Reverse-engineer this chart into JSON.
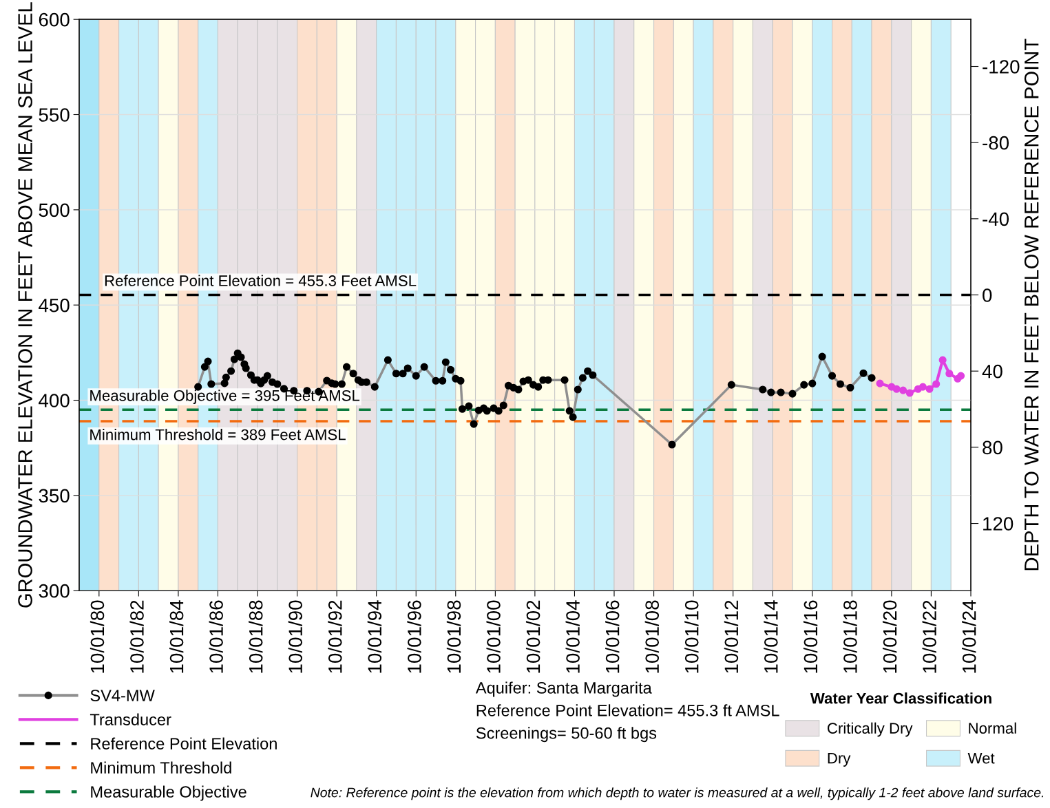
{
  "chart_data": {
    "type": "line",
    "ylabel": "GROUNDWATER ELEVATION IN FEET ABOVE MEAN SEA LEVEL",
    "y2label": "DEPTH TO WATER IN FEET BELOW REFERENCE POINT",
    "legend_title": "Water Year Classification",
    "xlim": [
      "1979-10-01",
      "2024-10-01"
    ],
    "xticks": [
      {
        "value": "1980-10-01",
        "label": "10/01/80"
      },
      {
        "value": "1982-10-01",
        "label": "10/01/82"
      },
      {
        "value": "1984-10-01",
        "label": "10/01/84"
      },
      {
        "value": "1986-10-01",
        "label": "10/01/86"
      },
      {
        "value": "1988-10-01",
        "label": "10/01/88"
      },
      {
        "value": "1990-10-01",
        "label": "10/01/90"
      },
      {
        "value": "1992-10-01",
        "label": "10/01/92"
      },
      {
        "value": "1994-10-01",
        "label": "10/01/94"
      },
      {
        "value": "1996-10-01",
        "label": "10/01/96"
      },
      {
        "value": "1998-10-01",
        "label": "10/01/98"
      },
      {
        "value": "2000-10-01",
        "label": "10/01/00"
      },
      {
        "value": "2002-10-01",
        "label": "10/01/02"
      },
      {
        "value": "2004-10-01",
        "label": "10/01/04"
      },
      {
        "value": "2006-10-01",
        "label": "10/01/06"
      },
      {
        "value": "2008-10-01",
        "label": "10/01/08"
      },
      {
        "value": "2010-10-01",
        "label": "10/01/10"
      },
      {
        "value": "2012-10-01",
        "label": "10/01/12"
      },
      {
        "value": "2014-10-01",
        "label": "10/01/14"
      },
      {
        "value": "2016-10-01",
        "label": "10/01/16"
      },
      {
        "value": "2018-10-01",
        "label": "10/01/18"
      },
      {
        "value": "2020-10-01",
        "label": "10/01/20"
      },
      {
        "value": "2022-10-01",
        "label": "10/01/22"
      },
      {
        "value": "2024-10-01",
        "label": "10/01/24"
      }
    ],
    "ylim": [
      300,
      600
    ],
    "yticks": [
      300,
      350,
      400,
      450,
      500,
      550,
      600
    ],
    "y2lim": [
      155.3,
      -144.7
    ],
    "y2ticks": [
      -120,
      -80,
      -40,
      0,
      40,
      80,
      120
    ],
    "grid": "y",
    "legend": "bottom",
    "series": [
      {
        "name": "SV4-MW",
        "color": "#000000",
        "marker": "circle",
        "line_style": "solid",
        "x": [
          "1985-10",
          "1986-02",
          "1986-04",
          "1986-06",
          "1987-02",
          "1987-03",
          "1987-06",
          "1987-08",
          "1987-10",
          "1987-12",
          "1988-02",
          "1988-03",
          "1988-06",
          "1988-08",
          "1988-10",
          "1988-12",
          "1989-02",
          "1989-04",
          "1989-07",
          "1989-10",
          "1990-02",
          "1990-08",
          "1991-04",
          "1991-11",
          "1992-04",
          "1992-07",
          "1992-09",
          "1993-01",
          "1993-04",
          "1993-08",
          "1993-11",
          "1994-01",
          "1994-04",
          "1994-09",
          "1995-05",
          "1995-10",
          "1996-02",
          "1996-05",
          "1996-10",
          "1997-03",
          "1997-10",
          "1998-02",
          "1998-04",
          "1998-07",
          "1998-10",
          "1999-01",
          "1999-02",
          "1999-06",
          "1999-09",
          "1999-12",
          "2000-03",
          "2000-05",
          "2000-09",
          "2000-12",
          "2001-03",
          "2001-06",
          "2001-09",
          "2001-12",
          "2002-03",
          "2002-06",
          "2002-09",
          "2002-12",
          "2003-03",
          "2003-06",
          "2004-04",
          "2004-07",
          "2004-09",
          "2004-12",
          "2005-03",
          "2005-06",
          "2005-09",
          "2009-09",
          "2012-09",
          "2014-04",
          "2014-09",
          "2015-03",
          "2015-10",
          "2016-05",
          "2016-10",
          "2017-04",
          "2017-10",
          "2018-03",
          "2018-09",
          "2019-05",
          "2019-10"
        ],
        "values": [
          407,
          417.5,
          420.4,
          408.5,
          408.9,
          412,
          415.3,
          421.5,
          424.7,
          422.6,
          419,
          416.8,
          413.2,
          410.6,
          410.6,
          408.8,
          410.6,
          412.8,
          409.5,
          408.5,
          406,
          405,
          405,
          404.5,
          410.3,
          408.9,
          408.5,
          408.5,
          417.5,
          414,
          410.6,
          409.5,
          409.5,
          407,
          421.1,
          414,
          414,
          416.8,
          412.8,
          417.5,
          410.2,
          410.2,
          420,
          416,
          411.3,
          410.2,
          395.4,
          396.9,
          387.5,
          394.7,
          395.8,
          394.4,
          395.8,
          394.4,
          397.3,
          407.7,
          406.6,
          405.6,
          409.9,
          410.6,
          408.1,
          407,
          410.6,
          410.6,
          410.6,
          394.4,
          391.1,
          405.6,
          411.7,
          415.3,
          413.2,
          376.7,
          408.1,
          405.6,
          404.1,
          404.1,
          403.4,
          408.1,
          408.8,
          422.9,
          412.8,
          408.5,
          406.6,
          414.2,
          411.7
        ]
      },
      {
        "name": "Transducer",
        "color": "#e040e0",
        "marker": "circle",
        "line_style": "solid",
        "x": [
          "2020-03",
          "2020-10",
          "2021-01",
          "2021-05",
          "2021-09",
          "2022-02",
          "2022-05",
          "2022-09",
          "2023-01",
          "2023-05",
          "2023-09",
          "2024-02",
          "2024-04"
        ],
        "values": [
          408.8,
          407,
          405.9,
          405.2,
          403.8,
          405.9,
          407,
          405.9,
          408.5,
          421.1,
          414,
          411.3,
          412.8
        ]
      },
      {
        "name": "Reference Point Elevation",
        "color": "#000000",
        "marker": "none",
        "line_style": "dashed",
        "x": [
          "1979-10-01",
          "2024-10-01"
        ],
        "values": [
          455.3,
          455.3
        ]
      },
      {
        "name": "Minimum Threshold",
        "color": "#f26b0f",
        "marker": "none",
        "line_style": "dashed",
        "x": [
          "1979-10-01",
          "2024-10-01"
        ],
        "values": [
          389,
          389
        ]
      },
      {
        "name": "Measurable Objective",
        "color": "#0b7a3e",
        "marker": "none",
        "line_style": "dashed",
        "x": [
          "1979-10-01",
          "2024-10-01"
        ],
        "values": [
          395,
          395
        ]
      }
    ],
    "bands": [
      {
        "axis": "x",
        "from": "1979-10-01",
        "to": "1980-10-01",
        "color": "#a8e6f8"
      },
      {
        "axis": "x",
        "from": "1980-10-01",
        "to": "1981-10-01",
        "color": "#fde0cc"
      },
      {
        "axis": "x",
        "from": "1981-10-01",
        "to": "1982-10-01",
        "color": "#c8f0fb"
      },
      {
        "axis": "x",
        "from": "1982-10-01",
        "to": "1983-10-01",
        "color": "#c8f0fb"
      },
      {
        "axis": "x",
        "from": "1983-10-01",
        "to": "1984-10-01",
        "color": "#fffde8"
      },
      {
        "axis": "x",
        "from": "1984-10-01",
        "to": "1985-10-01",
        "color": "#fde0cc"
      },
      {
        "axis": "x",
        "from": "1985-10-01",
        "to": "1986-10-01",
        "color": "#c8f0fb"
      },
      {
        "axis": "x",
        "from": "1986-10-01",
        "to": "1987-10-01",
        "label": "Critically Dry",
        "color": "#e9e2e5"
      },
      {
        "axis": "x",
        "from": "1987-10-01",
        "to": "1988-10-01",
        "color": "#e9e2e5"
      },
      {
        "axis": "x",
        "from": "1988-10-01",
        "to": "1989-10-01",
        "color": "#e9e2e5"
      },
      {
        "axis": "x",
        "from": "1989-10-01",
        "to": "1990-10-01",
        "color": "#e9e2e5"
      },
      {
        "axis": "x",
        "from": "1990-10-01",
        "to": "1991-10-01",
        "label": "Dry",
        "color": "#fde0cc"
      },
      {
        "axis": "x",
        "from": "1991-10-01",
        "to": "1992-10-01",
        "color": "#fde0cc"
      },
      {
        "axis": "x",
        "from": "1992-10-01",
        "to": "1993-10-01",
        "label": "Normal",
        "color": "#fffde8"
      },
      {
        "axis": "x",
        "from": "1993-10-01",
        "to": "1994-10-01",
        "color": "#e9e2e5"
      },
      {
        "axis": "x",
        "from": "1994-10-01",
        "to": "1995-10-01",
        "label": "Wet",
        "color": "#c8f0fb"
      },
      {
        "axis": "x",
        "from": "1995-10-01",
        "to": "1996-10-01",
        "color": "#c8f0fb"
      },
      {
        "axis": "x",
        "from": "1996-10-01",
        "to": "1997-10-01",
        "color": "#c8f0fb"
      },
      {
        "axis": "x",
        "from": "1997-10-01",
        "to": "1998-10-01",
        "color": "#c8f0fb"
      },
      {
        "axis": "x",
        "from": "1998-10-01",
        "to": "1999-10-01",
        "color": "#fffde8"
      },
      {
        "axis": "x",
        "from": "1999-10-01",
        "to": "2000-10-01",
        "color": "#fffde8"
      },
      {
        "axis": "x",
        "from": "2000-10-01",
        "to": "2001-10-01",
        "color": "#fde0cc"
      },
      {
        "axis": "x",
        "from": "2001-10-01",
        "to": "2002-10-01",
        "color": "#fffde8"
      },
      {
        "axis": "x",
        "from": "2002-10-01",
        "to": "2003-10-01",
        "color": "#fffde8"
      },
      {
        "axis": "x",
        "from": "2003-10-01",
        "to": "2004-10-01",
        "color": "#fffde8"
      },
      {
        "axis": "x",
        "from": "2004-10-01",
        "to": "2005-10-01",
        "color": "#c8f0fb"
      },
      {
        "axis": "x",
        "from": "2005-10-01",
        "to": "2006-10-01",
        "color": "#c8f0fb"
      },
      {
        "axis": "x",
        "from": "2006-10-01",
        "to": "2007-10-01",
        "color": "#e9e2e5"
      },
      {
        "axis": "x",
        "from": "2007-10-01",
        "to": "2008-10-01",
        "color": "#fffde8"
      },
      {
        "axis": "x",
        "from": "2008-10-01",
        "to": "2009-10-01",
        "color": "#fde0cc"
      },
      {
        "axis": "x",
        "from": "2009-10-01",
        "to": "2010-10-01",
        "color": "#fffde8"
      },
      {
        "axis": "x",
        "from": "2010-10-01",
        "to": "2011-10-01",
        "color": "#c8f0fb"
      },
      {
        "axis": "x",
        "from": "2011-10-01",
        "to": "2012-10-01",
        "color": "#fde0cc"
      },
      {
        "axis": "x",
        "from": "2012-10-01",
        "to": "2013-10-01",
        "color": "#fffde8"
      },
      {
        "axis": "x",
        "from": "2013-10-01",
        "to": "2014-10-01",
        "color": "#e9e2e5"
      },
      {
        "axis": "x",
        "from": "2014-10-01",
        "to": "2015-10-01",
        "color": "#fde0cc"
      },
      {
        "axis": "x",
        "from": "2015-10-01",
        "to": "2016-10-01",
        "color": "#fffde8"
      },
      {
        "axis": "x",
        "from": "2016-10-01",
        "to": "2017-10-01",
        "color": "#c8f0fb"
      },
      {
        "axis": "x",
        "from": "2017-10-01",
        "to": "2018-10-01",
        "color": "#fde0cc"
      },
      {
        "axis": "x",
        "from": "2018-10-01",
        "to": "2019-10-01",
        "color": "#c8f0fb"
      },
      {
        "axis": "x",
        "from": "2019-10-01",
        "to": "2020-10-01",
        "color": "#fde0cc"
      },
      {
        "axis": "x",
        "from": "2020-10-01",
        "to": "2021-10-01",
        "color": "#e9e2e5"
      },
      {
        "axis": "x",
        "from": "2021-10-01",
        "to": "2022-10-01",
        "color": "#fffde8"
      },
      {
        "axis": "x",
        "from": "2022-10-01",
        "to": "2023-10-01",
        "color": "#c8f0fb"
      }
    ],
    "annotations": [
      {
        "text": "Reference Point Elevation = 455.3 Feet AMSL",
        "x": "1981-01-01",
        "y": 455.3
      },
      {
        "text": "Measurable Objective = 395 Feet AMSL",
        "x": "1980-04-01",
        "y": 395
      },
      {
        "text": "Minimum Threshold = 389 Feet AMSL",
        "x": "1980-04-01",
        "y": 389
      },
      "Aquifer: Santa Margarita",
      "Reference Point Elevation= 455.3 ft AMSL",
      "Screenings= 50-60 ft bgs",
      "Note: Reference point is the elevation from which depth to water is measured at a well, typically 1-2 feet above land surface."
    ]
  }
}
